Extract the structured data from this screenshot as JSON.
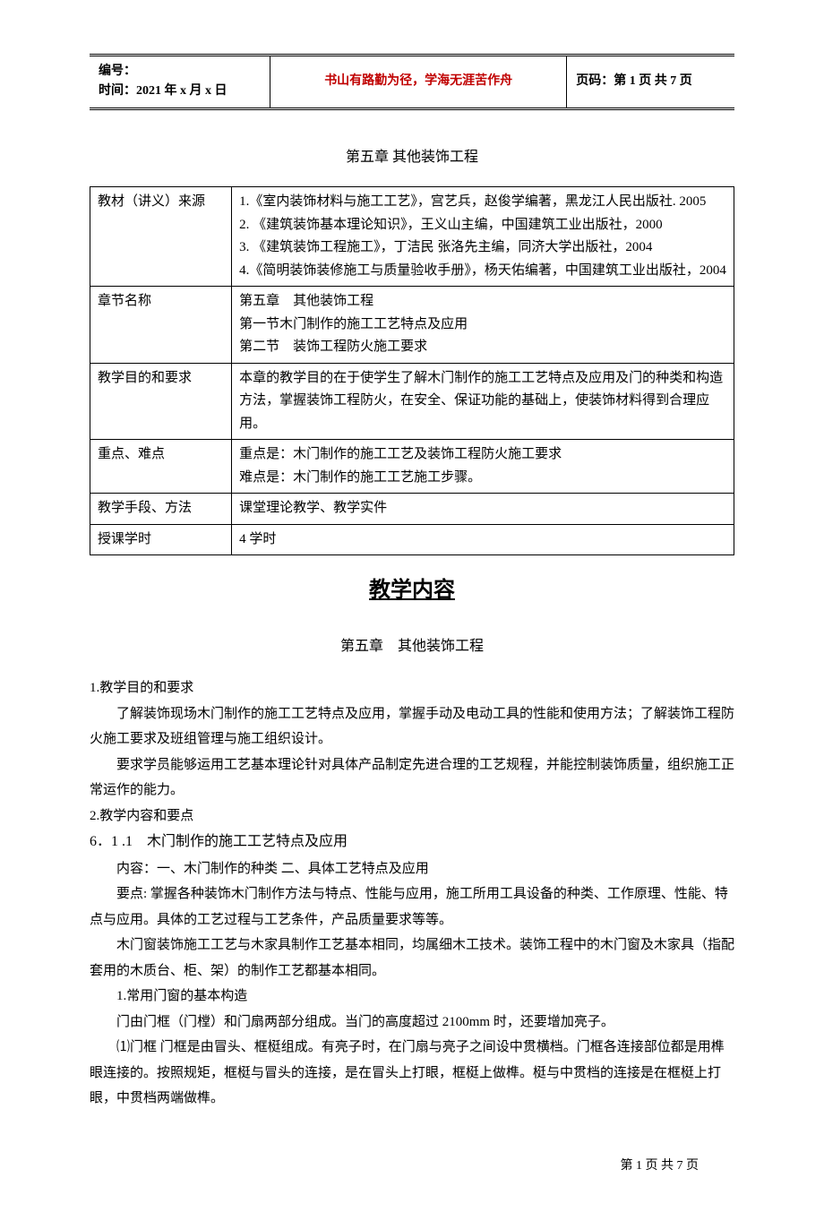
{
  "header": {
    "serial_label": "编号：",
    "time_label": "时间：2021 年 x 月 x 日",
    "motto": "书山有路勤为径，学海无涯苦作舟",
    "page_label": "页码：第 1 页 共 7 页"
  },
  "chapter_title": "第五章 其他装饰工程",
  "info_table": {
    "rows": [
      {
        "label": "教材（讲义）来源",
        "content": "1.《室内装饰材料与施工工艺》，宫艺兵，赵俊学编著，黑龙江人民出版社. 2005\n2. 《建筑装饰基本理论知识》，王义山主编，中国建筑工业出版社，2000\n3. 《建筑装饰工程施工》，丁洁民 张洛先主编，同济大学出版社，2004\n4.《简明装饰装修施工与质量验收手册》，杨天佑编著，中国建筑工业出版社，2004"
      },
      {
        "label": "章节名称",
        "content": "第五章　其他装饰工程\n第一节木门制作的施工工艺特点及应用\n第二节　装饰工程防火施工要求"
      },
      {
        "label": "教学目的和要求",
        "content": "本章的教学目的在于使学生了解木门制作的施工工艺特点及应用及门的种类和构造方法，掌握装饰工程防火，在安全、保证功能的基础上，使装饰材料得到合理应用。"
      },
      {
        "label": "重点、难点",
        "content": "重点是：木门制作的施工工艺及装饰工程防火施工要求\n难点是：木门制作的施工工艺施工步骤。"
      },
      {
        "label": "教学手段、方法",
        "content": "课堂理论教学、教学实件"
      },
      {
        "label": "授课学时",
        "content": "4 学时"
      }
    ]
  },
  "section_heading": "教学内容",
  "sub_chapter": "第五章　其他装饰工程",
  "body": {
    "p1_label": "1.教学目的和要求",
    "p1a": "了解装饰现场木门制作的施工工艺特点及应用，掌握手动及电动工具的性能和使用方法；了解装饰工程防火施工要求及班组管理与施工组织设计。",
    "p1b": "要求学员能够运用工艺基本理论针对具体产品制定先进合理的工艺规程，并能控制装饰质量，组织施工正常运作的能力。",
    "p2_label": "2.教学内容和要点",
    "section_num": "6．1 .1　木门制作的施工工艺特点及应用",
    "p3": "内容：一、木门制作的种类 二、具体工艺特点及应用",
    "p4": "要点: 掌握各种装饰木门制作方法与特点、性能与应用，施工所用工具设备的种类、工作原理、性能、特点与应用。具体的工艺过程与工艺条件，产品质量要求等等。",
    "p5": "木门窗装饰施工工艺与木家具制作工艺基本相同，均属细木工技术。装饰工程中的木门窗及木家具（指配套用的木质台、柜、架）的制作工艺都基本相同。",
    "p6": "1.常用门窗的基本构造",
    "p7": "门由门框（门樘）和门扇两部分组成。当门的高度超过 2100mm 时，还要增加亮子。",
    "p8": "⑴门框 门框是由冒头、框梃组成。有亮子时，在门扇与亮子之间设中贯横档。门框各连接部位都是用榫眼连接的。按照规矩，框梃与冒头的连接，是在冒头上打眼，框梃上做榫。梃与中贯档的连接是在框梃上打眼，中贯档两端做榫。"
  },
  "footer": "第 1 页 共 7 页"
}
